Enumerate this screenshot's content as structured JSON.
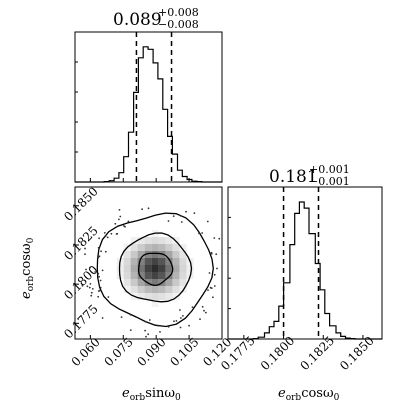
{
  "chart_data": [
    {
      "type": "histogram",
      "panel": "top-left",
      "title": {
        "value": "0.089",
        "plus": "+0.008",
        "minus": "−0.008"
      },
      "xlim": [
        0.053,
        0.12
      ],
      "quantile_lines": [
        0.081,
        0.097
      ],
      "bins_edges": [
        0.053,
        0.0552,
        0.0574,
        0.0597,
        0.0619,
        0.0641,
        0.0663,
        0.0686,
        0.0708,
        0.073,
        0.0752,
        0.0774,
        0.0797,
        0.0819,
        0.0841,
        0.0863,
        0.0886,
        0.0908,
        0.093,
        0.0952,
        0.0974,
        0.0997,
        0.1019,
        0.1041,
        0.1063,
        0.1086,
        0.1108,
        0.113,
        0.1152,
        0.1174,
        0.12
      ],
      "counts": [
        0,
        0,
        0,
        0,
        0,
        0,
        1,
        3,
        9,
        22,
        60,
        118,
        212,
        294,
        320,
        314,
        282,
        244,
        172,
        108,
        66,
        28,
        13,
        6,
        2,
        1,
        0,
        0,
        0,
        0
      ]
    },
    {
      "type": "contour",
      "panel": "bottom-left",
      "x_label": {
        "base": "e",
        "sub": "orb",
        "rest": "sinω",
        "sub2": "0"
      },
      "y_label": {
        "base": "e",
        "sub": "orb",
        "rest": "cosω",
        "sub2": "0"
      },
      "xlim": [
        0.053,
        0.12
      ],
      "ylim": [
        0.1765,
        0.1862
      ],
      "xticks": [
        "0.060",
        "0.075",
        "0.090",
        "0.105",
        "0.120"
      ],
      "yticks": [
        "0.1775",
        "0.1800",
        "0.1825",
        "0.1850"
      ],
      "center": [
        0.0895,
        0.181
      ]
    },
    {
      "type": "histogram",
      "panel": "bottom-right",
      "title": {
        "value": "0.181",
        "plus": "+0.001",
        "minus": "−0.001"
      },
      "xlim": [
        0.1765,
        0.1862
      ],
      "xlabel": {
        "base": "e",
        "sub": "orb",
        "rest": "cosω",
        "sub2": "0"
      },
      "xticks": [
        "0.1775",
        "0.1800",
        "0.1825",
        "0.1850"
      ],
      "quantile_lines": [
        0.18,
        0.1822
      ],
      "bins_edges": [
        0.1765,
        0.1768,
        0.1772,
        0.1775,
        0.1778,
        0.1781,
        0.1784,
        0.1788,
        0.1791,
        0.1794,
        0.1797,
        0.18,
        0.1804,
        0.1807,
        0.181,
        0.1813,
        0.1816,
        0.182,
        0.1823,
        0.1826,
        0.1829,
        0.1833,
        0.1836,
        0.1839,
        0.1842,
        0.1845,
        0.1849,
        0.1852,
        0.1855,
        0.1858,
        0.1862
      ],
      "counts": [
        0,
        0,
        0,
        0,
        0,
        1,
        4,
        14,
        28,
        40,
        75,
        128,
        215,
        286,
        312,
        298,
        240,
        172,
        112,
        58,
        30,
        14,
        6,
        2,
        1,
        0,
        0,
        0,
        0,
        0
      ]
    }
  ]
}
